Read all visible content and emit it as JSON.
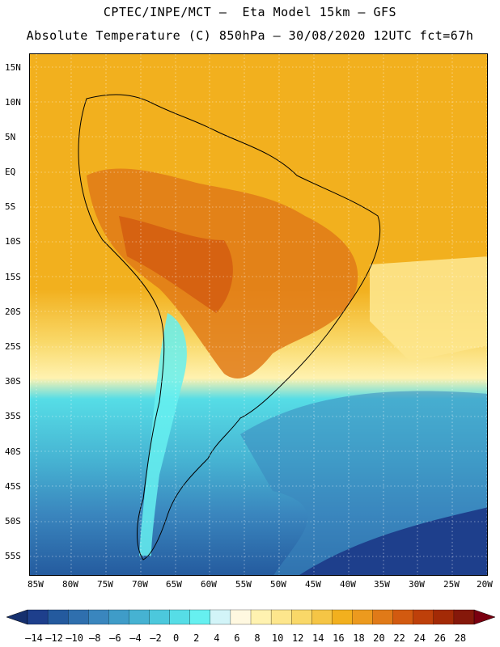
{
  "title_line1": "CPTEC/INPE/MCT –  Eta Model 15km – GFS",
  "title_line2": "Absolute Temperature (C) 850hPa – 30/08/2020 12UTC fct=67h",
  "lat_labels": [
    "15N",
    "10N",
    "5N",
    "EQ",
    "5S",
    "10S",
    "15S",
    "20S",
    "25S",
    "30S",
    "35S",
    "40S",
    "45S",
    "50S",
    "55S"
  ],
  "lon_labels": [
    "85W",
    "80W",
    "75W",
    "70W",
    "65W",
    "60W",
    "55W",
    "50W",
    "45W",
    "40W",
    "35W",
    "30W",
    "25W",
    "20W"
  ],
  "colorbar": {
    "labels": [
      "-14",
      "-12",
      "-10",
      "-8",
      "-6",
      "-4",
      "-2",
      "0",
      "2",
      "4",
      "6",
      "8",
      "10",
      "12",
      "14",
      "16",
      "18",
      "20",
      "22",
      "24",
      "26",
      "28"
    ],
    "colors": [
      "#1e3f8c",
      "#245a9e",
      "#2f6fae",
      "#3a86be",
      "#3f9cc8",
      "#46b2d2",
      "#4cc8dc",
      "#56dde6",
      "#66f0f0",
      "#d2f4f8",
      "#fff8e0",
      "#fff2b0",
      "#fde68c",
      "#f9d868",
      "#f5c545",
      "#f2b01e",
      "#ec9a1e",
      "#e07a18",
      "#d25a10",
      "#be400a",
      "#a32a06",
      "#85180a"
    ],
    "under_color": "#16306e",
    "over_color": "#7a0010"
  }
}
